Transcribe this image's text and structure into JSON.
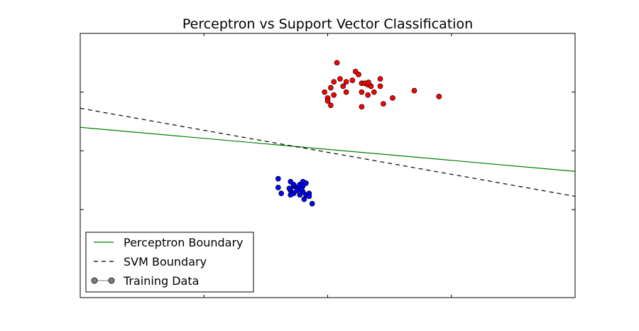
{
  "chart_data": {
    "type": "scatter",
    "title": "Perceptron vs Support Vector Classification",
    "xlabel": "",
    "ylabel": "",
    "xlim": [
      -4,
      4
    ],
    "ylim": [
      -5,
      4
    ],
    "grid": false,
    "legend_position": "bottom-left",
    "colors": {
      "perceptron": "#008000",
      "svm": "#000000",
      "class_red": "#ff0000",
      "class_blue": "#0000ff",
      "legend_marker": "#808080"
    },
    "lines": [
      {
        "name": "Perceptron Boundary",
        "style": "solid",
        "x": [
          -4,
          4
        ],
        "y": [
          0.8,
          -0.7
        ]
      },
      {
        "name": "SVM Boundary",
        "style": "dashed",
        "x": [
          -4,
          4
        ],
        "y": [
          1.45,
          -1.55
        ]
      }
    ],
    "legend": [
      {
        "label": "Perceptron Boundary",
        "kind": "line-solid"
      },
      {
        "label": "SVM Boundary",
        "kind": "line-dashed"
      },
      {
        "label": "Training Data",
        "kind": "marker"
      }
    ],
    "series": [
      {
        "class": "red",
        "points": [
          [
            0.15,
            3.0
          ],
          [
            0.45,
            2.7
          ],
          [
            0.5,
            2.6
          ],
          [
            0.2,
            2.45
          ],
          [
            0.4,
            2.4
          ],
          [
            0.1,
            2.35
          ],
          [
            0.55,
            2.3
          ],
          [
            0.85,
            2.45
          ],
          [
            0.3,
            2.35
          ],
          [
            0.25,
            2.2
          ],
          [
            0.6,
            2.3
          ],
          [
            0.65,
            2.25
          ],
          [
            0.7,
            2.2
          ],
          [
            0.66,
            2.33
          ],
          [
            0.05,
            2.15
          ],
          [
            0.3,
            2.0
          ],
          [
            0.55,
            2.0
          ],
          [
            0.75,
            2.0
          ],
          [
            0.65,
            1.9
          ],
          [
            0.85,
            2.2
          ],
          [
            0.0,
            1.8
          ],
          [
            0.1,
            1.9
          ],
          [
            -0.05,
            2.0
          ],
          [
            0.05,
            1.55
          ],
          [
            0.0,
            1.7
          ],
          [
            0.55,
            1.5
          ],
          [
            0.9,
            1.6
          ],
          [
            1.05,
            1.8
          ],
          [
            1.4,
            2.05
          ],
          [
            1.8,
            1.85
          ]
        ]
      },
      {
        "class": "blue",
        "points": [
          [
            -0.8,
            -0.95
          ],
          [
            -0.8,
            -1.25
          ],
          [
            -0.75,
            -1.45
          ],
          [
            -0.6,
            -1.35
          ],
          [
            -0.55,
            -1.45
          ],
          [
            -0.6,
            -1.05
          ],
          [
            -0.55,
            -1.2
          ],
          [
            -0.45,
            -1.15
          ],
          [
            -0.5,
            -1.25
          ],
          [
            -0.45,
            -1.3
          ],
          [
            -0.4,
            -1.05
          ],
          [
            -0.35,
            -1.1
          ],
          [
            -0.4,
            -1.4
          ],
          [
            -0.35,
            -1.5
          ],
          [
            -0.3,
            -1.45
          ],
          [
            -0.45,
            -1.5
          ],
          [
            -0.6,
            -1.5
          ],
          [
            -0.55,
            -1.15
          ],
          [
            -0.4,
            -1.2
          ],
          [
            -0.38,
            -1.65
          ],
          [
            -0.3,
            -1.55
          ],
          [
            -0.25,
            -1.8
          ],
          [
            -0.5,
            -1.35
          ],
          [
            -0.42,
            -1.32
          ],
          [
            -0.62,
            -1.28
          ]
        ]
      }
    ]
  }
}
